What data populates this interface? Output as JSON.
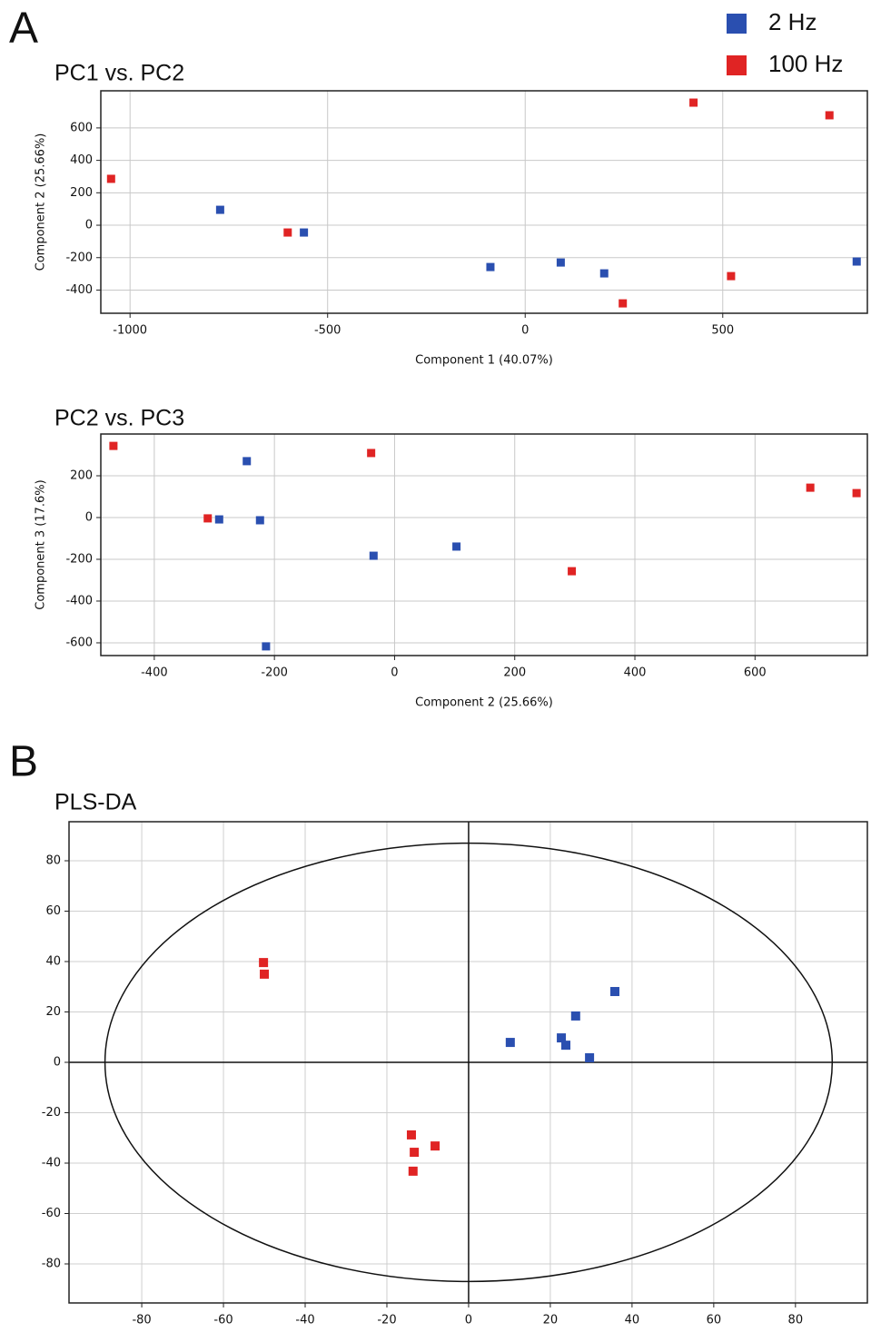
{
  "panels": [
    {
      "label": "A"
    },
    {
      "label": "B"
    }
  ],
  "chart_data": [
    {
      "type": "scatter",
      "title": "PC1 vs. PC2",
      "x_label": "Component 1 (40.07%)",
      "y_label": "Component 2 (25.66%)",
      "xlim": [
        -1074,
        866
      ],
      "ylim": [
        -543,
        829
      ],
      "xticks": [
        -1000,
        -500,
        0,
        500
      ],
      "yticks": [
        -400,
        -200,
        0,
        200,
        400,
        600
      ],
      "grid": true,
      "series": [
        {
          "name": "2 Hz",
          "color": "#2a4fb0",
          "x": [
            -772,
            -560,
            -88,
            90,
            200,
            839
          ],
          "values": [
            95,
            -45,
            -258,
            -230,
            -297,
            -224
          ]
        },
        {
          "name": "100 Hz",
          "color": "#e02424",
          "x": [
            -1048,
            -601,
            426,
            770,
            521,
            247
          ],
          "values": [
            286,
            -45,
            756,
            678,
            -314,
            -482
          ]
        }
      ]
    },
    {
      "type": "scatter",
      "title": "PC2 vs. PC3",
      "x_label": "Component 2 (25.66%)",
      "y_label": "Component 3 (17.6%)",
      "xlim": [
        -489,
        787
      ],
      "ylim": [
        -661,
        400
      ],
      "xticks": [
        -400,
        -200,
        0,
        200,
        400,
        600
      ],
      "yticks": [
        -600,
        -400,
        -200,
        0,
        200
      ],
      "grid": true,
      "series": [
        {
          "color": "#2a4fb0",
          "x": [
            -246,
            -292,
            -224,
            -35,
            103,
            -214
          ],
          "values": [
            270,
            -9,
            -13,
            -183,
            -139,
            -617
          ]
        },
        {
          "color": "#e02424",
          "x": [
            -468,
            -311,
            -39,
            295,
            692,
            769
          ],
          "values": [
            343,
            -4,
            309,
            -257,
            143,
            117
          ]
        }
      ]
    },
    {
      "type": "scatter",
      "title": "PLS-DA",
      "xlim": [
        -97.8,
        97.6
      ],
      "ylim": [
        -95.5,
        95.5
      ],
      "xticks": [
        -80,
        -60,
        -40,
        -20,
        0,
        20,
        40,
        60,
        80
      ],
      "yticks": [
        -80,
        -60,
        -40,
        -20,
        0,
        20,
        40,
        60,
        80
      ],
      "grid": true,
      "ellipse_radii": [
        89,
        87
      ],
      "series": [
        {
          "color": "#2a4fb0",
          "x": [
            10.2,
            22.7,
            23.8,
            26.2,
            29.6,
            35.8
          ],
          "values": [
            7.9,
            9.7,
            6.8,
            18.4,
            1.8,
            28.1
          ]
        },
        {
          "color": "#e02424",
          "x": [
            -50.2,
            -50,
            -14,
            -13.3,
            -13.6,
            -8.2
          ],
          "values": [
            39.6,
            35,
            -28.8,
            -35.7,
            -43.2,
            -33.2
          ]
        }
      ]
    }
  ]
}
